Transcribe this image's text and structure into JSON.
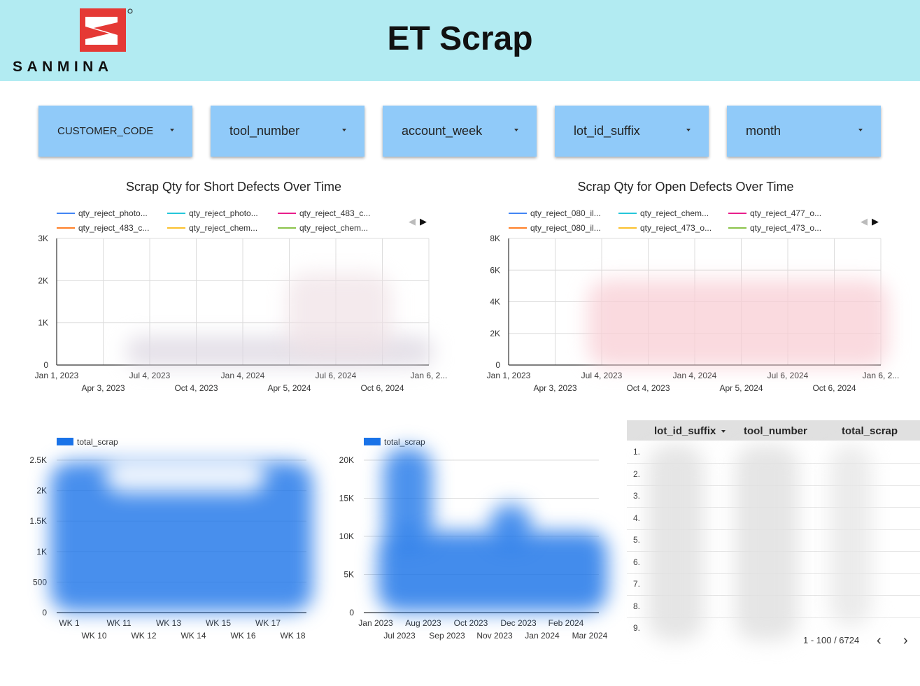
{
  "header": {
    "brand": "SANMINA",
    "title": "ET Scrap",
    "colors": {
      "background": "#b2ebf2",
      "logo_red": "#e53935"
    }
  },
  "filters": [
    {
      "label": "CUSTOMER_CODE"
    },
    {
      "label": "tool_number"
    },
    {
      "label": "account_week"
    },
    {
      "label": "lot_id_suffix"
    },
    {
      "label": "month"
    }
  ],
  "charts": {
    "short": {
      "title": "Scrap Qty for Short Defects Over Time",
      "legend": [
        {
          "name": "qty_reject_photo...",
          "color": "#4285f4"
        },
        {
          "name": "qty_reject_photo...",
          "color": "#26c6da"
        },
        {
          "name": "qty_reject_483_c...",
          "color": "#e91e8c"
        },
        {
          "name": "qty_reject_483_c...",
          "color": "#ff7f27"
        },
        {
          "name": "qty_reject_chem...",
          "color": "#fbc02d"
        },
        {
          "name": "qty_reject_chem...",
          "color": "#8bc34a"
        }
      ],
      "y_ticks": [
        "0",
        "1K",
        "2K",
        "3K"
      ],
      "x_ticks_top": [
        "Jan 1, 2023",
        "Jul 4, 2023",
        "Jan 4, 2024",
        "Jul 6, 2024",
        "Jan 6, 2..."
      ],
      "x_ticks_bottom": [
        "Apr 3, 2023",
        "Oct 4, 2023",
        "Apr 5, 2024",
        "Oct 6, 2024"
      ]
    },
    "open": {
      "title": "Scrap Qty for Open Defects Over Time",
      "legend": [
        {
          "name": "qty_reject_080_il...",
          "color": "#4285f4"
        },
        {
          "name": "qty_reject_chem...",
          "color": "#26c6da"
        },
        {
          "name": "qty_reject_477_o...",
          "color": "#e91e8c"
        },
        {
          "name": "qty_reject_080_il...",
          "color": "#ff7f27"
        },
        {
          "name": "qty_reject_473_o...",
          "color": "#fbc02d"
        },
        {
          "name": "qty_reject_473_o...",
          "color": "#8bc34a"
        }
      ],
      "y_ticks": [
        "0",
        "2K",
        "4K",
        "6K",
        "8K"
      ],
      "x_ticks_top": [
        "Jan 1, 2023",
        "Jul 4, 2023",
        "Jan 4, 2024",
        "Jul 6, 2024",
        "Jan 6, 2..."
      ],
      "x_ticks_bottom": [
        "Apr 3, 2023",
        "Oct 4, 2023",
        "Apr 5, 2024",
        "Oct 6, 2024"
      ]
    },
    "weekly": {
      "legend": "total_scrap",
      "color": "#1a73e8",
      "y_ticks": [
        "0",
        "500",
        "1K",
        "1.5K",
        "2K",
        "2.5K"
      ],
      "x_ticks_top": [
        "WK 1",
        "WK 11",
        "WK 13",
        "WK 15",
        "WK 17"
      ],
      "x_ticks_bottom": [
        "WK 10",
        "WK 12",
        "WK 14",
        "WK 16",
        "WK 18"
      ]
    },
    "monthly": {
      "legend": "total_scrap",
      "color": "#1a73e8",
      "y_ticks": [
        "0",
        "5K",
        "10K",
        "15K",
        "20K"
      ],
      "x_ticks_top": [
        "Jan 2023",
        "Aug 2023",
        "Oct 2023",
        "Dec 2023",
        "Feb 2024"
      ],
      "x_ticks_bottom": [
        "Jul 2023",
        "Sep 2023",
        "Nov 2023",
        "Jan 2024",
        "Mar 2024"
      ]
    }
  },
  "table": {
    "columns": [
      "lot_id_suffix",
      "tool_number",
      "total_scrap"
    ],
    "row_numbers": [
      "1.",
      "2.",
      "3.",
      "4.",
      "5.",
      "6.",
      "7.",
      "8.",
      "9."
    ],
    "pagination": "1 - 100 / 6724"
  }
}
